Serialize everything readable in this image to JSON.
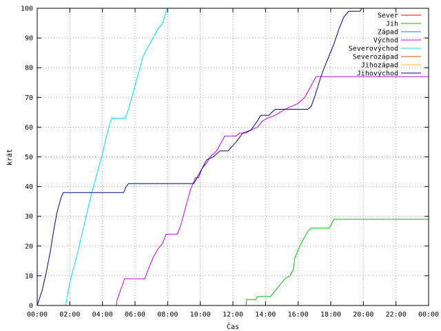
{
  "chart_data": {
    "type": "line",
    "xlabel": "Čas",
    "ylabel": "krát",
    "xlim": [
      0,
      24
    ],
    "ylim": [
      0,
      100
    ],
    "x_ticks": [
      "00:00",
      "02:00",
      "04:00",
      "06:00",
      "08:00",
      "10:00",
      "12:00",
      "14:00",
      "16:00",
      "18:00",
      "20:00",
      "22:00",
      "00:00"
    ],
    "y_ticks": [
      "0",
      "10",
      "20",
      "30",
      "40",
      "50",
      "60",
      "70",
      "80",
      "90",
      "100"
    ],
    "grid": true,
    "legend_position": "top-right",
    "series": [
      {
        "name": "Sever",
        "color": "#ff0000",
        "points": []
      },
      {
        "name": "Jih",
        "color": "#00c000",
        "points": [
          [
            12.8,
            0
          ],
          [
            12.85,
            2
          ],
          [
            13.4,
            2
          ],
          [
            13.5,
            3
          ],
          [
            14.3,
            3
          ],
          [
            14.6,
            5
          ],
          [
            14.9,
            7
          ],
          [
            15.2,
            9
          ],
          [
            15.5,
            10
          ],
          [
            15.7,
            12
          ],
          [
            15.8,
            16
          ],
          [
            16.1,
            20
          ],
          [
            16.4,
            23
          ],
          [
            16.6,
            25
          ],
          [
            16.8,
            26
          ],
          [
            17.9,
            26
          ],
          [
            18.0,
            27
          ],
          [
            18.2,
            29
          ],
          [
            24,
            29
          ]
        ]
      },
      {
        "name": "Západ",
        "color": "#0080ff",
        "points": []
      },
      {
        "name": "Východ",
        "color": "#c000ff",
        "points": [
          [
            4.85,
            0
          ],
          [
            4.9,
            2
          ],
          [
            5.1,
            5
          ],
          [
            5.3,
            8
          ],
          [
            5.35,
            9
          ],
          [
            6.6,
            9
          ],
          [
            6.8,
            12
          ],
          [
            7.1,
            16
          ],
          [
            7.4,
            19
          ],
          [
            7.7,
            21
          ],
          [
            7.9,
            24
          ],
          [
            8.6,
            24
          ],
          [
            8.8,
            27
          ],
          [
            9.0,
            31
          ],
          [
            9.2,
            35
          ],
          [
            9.4,
            39
          ],
          [
            9.7,
            43
          ],
          [
            9.9,
            43
          ],
          [
            10.1,
            46
          ],
          [
            10.4,
            48
          ],
          [
            10.6,
            50
          ],
          [
            11.0,
            52
          ],
          [
            11.3,
            55
          ],
          [
            11.5,
            57
          ],
          [
            12.2,
            57
          ],
          [
            12.4,
            58
          ],
          [
            12.8,
            58
          ],
          [
            13.1,
            59
          ],
          [
            13.5,
            60
          ],
          [
            13.8,
            62
          ],
          [
            14.1,
            63
          ],
          [
            14.6,
            64
          ],
          [
            15.2,
            66
          ],
          [
            15.6,
            67
          ],
          [
            16.0,
            68
          ],
          [
            16.4,
            70
          ],
          [
            16.8,
            74
          ],
          [
            17.1,
            77
          ],
          [
            24,
            77
          ]
        ]
      },
      {
        "name": "Severovýchod",
        "color": "#00e0e0",
        "points": [
          [
            1.75,
            0
          ],
          [
            1.9,
            5
          ],
          [
            2.1,
            10
          ],
          [
            2.4,
            16
          ],
          [
            2.7,
            23
          ],
          [
            3.0,
            30
          ],
          [
            3.3,
            37
          ],
          [
            3.7,
            45
          ],
          [
            4.0,
            51
          ],
          [
            4.2,
            56
          ],
          [
            4.5,
            62
          ],
          [
            4.6,
            63
          ],
          [
            5.4,
            63
          ],
          [
            5.6,
            66
          ],
          [
            5.9,
            72
          ],
          [
            6.2,
            78
          ],
          [
            6.5,
            84
          ],
          [
            6.8,
            87
          ],
          [
            7.1,
            90
          ],
          [
            7.4,
            93
          ],
          [
            7.7,
            95
          ],
          [
            7.9,
            99
          ],
          [
            8.0,
            100
          ]
        ]
      },
      {
        "name": "Severozápad",
        "color": "#c06000",
        "points": []
      },
      {
        "name": "Jihozápad",
        "color": "#ffc000",
        "points": []
      },
      {
        "name": "Jihovýchod",
        "color": "#000080",
        "points": [
          [
            0,
            0
          ],
          [
            0.3,
            5
          ],
          [
            0.55,
            11
          ],
          [
            0.8,
            18
          ],
          [
            1.0,
            25
          ],
          [
            1.2,
            31
          ],
          [
            1.45,
            36
          ],
          [
            1.6,
            38
          ],
          [
            5.3,
            38
          ],
          [
            5.45,
            40
          ],
          [
            5.6,
            41
          ],
          [
            9.6,
            41
          ],
          [
            9.8,
            43
          ],
          [
            10.0,
            45
          ],
          [
            10.2,
            47
          ],
          [
            10.4,
            49
          ],
          [
            10.8,
            50
          ],
          [
            11.2,
            52
          ],
          [
            11.7,
            52
          ],
          [
            12.2,
            55
          ],
          [
            12.6,
            58
          ],
          [
            13.1,
            59
          ],
          [
            13.5,
            62
          ],
          [
            13.7,
            64
          ],
          [
            14.2,
            64
          ],
          [
            14.4,
            65
          ],
          [
            14.6,
            66
          ],
          [
            16.6,
            66
          ],
          [
            16.8,
            67
          ],
          [
            17.0,
            70
          ],
          [
            17.4,
            77
          ],
          [
            17.6,
            80
          ],
          [
            17.9,
            84
          ],
          [
            18.2,
            88
          ],
          [
            18.5,
            93
          ],
          [
            18.8,
            97
          ],
          [
            19.1,
            99
          ],
          [
            19.8,
            99
          ],
          [
            19.9,
            100
          ]
        ]
      }
    ]
  }
}
